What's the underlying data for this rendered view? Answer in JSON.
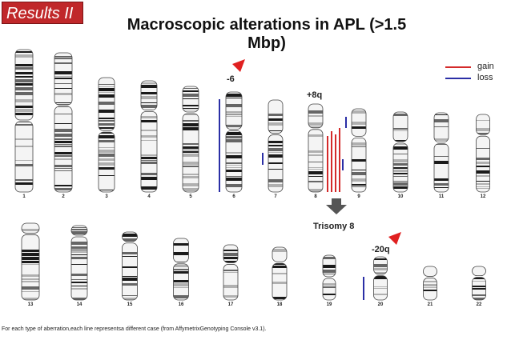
{
  "header": {
    "badge": "Results II",
    "title": "Macroscopic alterations in APL (>1.5 Mbp)"
  },
  "legend": {
    "gain_label": "gain",
    "loss_label": "loss",
    "gain_color": "#d42a2a",
    "loss_color": "#2b2fa6"
  },
  "annotations": {
    "chr6": "-6",
    "chr8": "+8q",
    "trisomy": "Trisomy 8",
    "chr20": "-20q"
  },
  "chromosomes": [
    "1",
    "2",
    "3",
    "4",
    "5",
    "6",
    "7",
    "8",
    "9",
    "10",
    "11",
    "12",
    "13",
    "14",
    "15",
    "16",
    "17",
    "18",
    "19",
    "20",
    "21",
    "22"
  ],
  "alterations": [
    {
      "chromosome": "6",
      "type": "loss",
      "cases": 1
    },
    {
      "chromosome": "7",
      "type": "loss",
      "cases": 1
    },
    {
      "chromosome": "8",
      "type": "gain",
      "cases": 4
    },
    {
      "chromosome": "9",
      "type": "loss",
      "cases": 2
    },
    {
      "chromosome": "20",
      "type": "loss",
      "cases": 1
    }
  ],
  "footnote": "For each type of aberration,each line representsa different case (from AffymetrixGenotyping Console v3.1)."
}
